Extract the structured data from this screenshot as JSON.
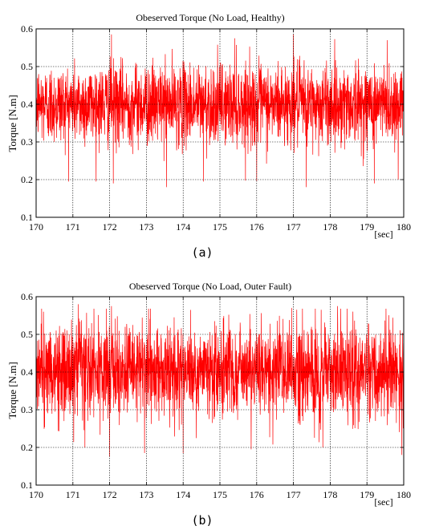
{
  "chart_data": [
    {
      "type": "line",
      "panel_label": "(a)",
      "title": "Obeserved Torque (No Load, Healthy)",
      "ylabel": "Torque [N.m]",
      "xunit": "[sec]",
      "xlim": [
        170,
        180
      ],
      "ylim": [
        0.1,
        0.6
      ],
      "xticks": [
        170,
        171,
        172,
        173,
        174,
        175,
        176,
        177,
        178,
        179,
        180
      ],
      "yticks": [
        0.1,
        0.2,
        0.3,
        0.4,
        0.5,
        0.6
      ],
      "grid": true,
      "color": "#ff0000",
      "signal": {
        "mean": 0.4,
        "typical_band": [
          0.3,
          0.51
        ],
        "min_spike": 0.18,
        "max_spike": 0.585,
        "peaks": [
          {
            "x": 172.05,
            "y": 0.585
          },
          {
            "x": 175.4,
            "y": 0.575
          },
          {
            "x": 177.0,
            "y": 0.585
          },
          {
            "x": 179.55,
            "y": 0.57
          }
        ],
        "troughs": [
          {
            "x": 172.1,
            "y": 0.19
          },
          {
            "x": 173.55,
            "y": 0.18
          },
          {
            "x": 174.55,
            "y": 0.195
          },
          {
            "x": 176.0,
            "y": 0.195
          },
          {
            "x": 177.35,
            "y": 0.18
          },
          {
            "x": 179.2,
            "y": 0.19
          },
          {
            "x": 179.85,
            "y": 0.2
          }
        ]
      }
    },
    {
      "type": "line",
      "panel_label": "(b)",
      "title": "Obeserved Torque (No Load, Outer Fault)",
      "ylabel": "Torque [N.m]",
      "xunit": "[sec]",
      "xlim": [
        170,
        180
      ],
      "ylim": [
        0.1,
        0.6
      ],
      "xticks": [
        170,
        171,
        172,
        173,
        174,
        175,
        176,
        177,
        178,
        179,
        180
      ],
      "yticks": [
        0.1,
        0.2,
        0.3,
        0.4,
        0.5,
        0.6
      ],
      "grid": true,
      "color": "#ff0000",
      "signal": {
        "mean": 0.4,
        "typical_band": [
          0.27,
          0.52
        ],
        "min_spike": 0.175,
        "max_spike": 0.58,
        "peaks": [
          {
            "x": 170.2,
            "y": 0.56
          },
          {
            "x": 171.15,
            "y": 0.58
          },
          {
            "x": 172.05,
            "y": 0.575
          },
          {
            "x": 174.2,
            "y": 0.565
          },
          {
            "x": 176.95,
            "y": 0.57
          },
          {
            "x": 178.2,
            "y": 0.575
          }
        ],
        "troughs": [
          {
            "x": 172.0,
            "y": 0.175
          },
          {
            "x": 172.95,
            "y": 0.185
          },
          {
            "x": 174.0,
            "y": 0.185
          },
          {
            "x": 175.85,
            "y": 0.195
          },
          {
            "x": 177.8,
            "y": 0.2
          },
          {
            "x": 179.95,
            "y": 0.18
          }
        ]
      }
    }
  ]
}
